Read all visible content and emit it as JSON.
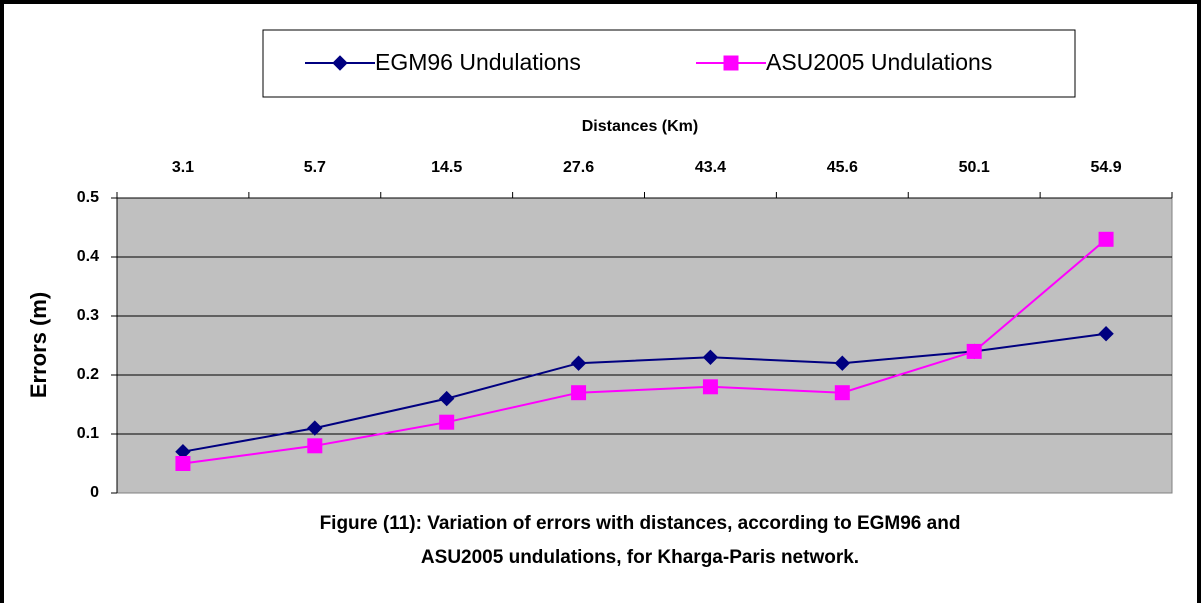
{
  "chart_data": {
    "type": "line",
    "x_label": "Distances (Km)",
    "y_label": "Errors (m)",
    "categories": [
      "3.1",
      "5.7",
      "14.5",
      "27.6",
      "43.4",
      "45.6",
      "50.1",
      "54.9"
    ],
    "series": [
      {
        "name": "EGM96 Undulations",
        "color": "#000080",
        "marker": "diamond",
        "values": [
          0.07,
          0.11,
          0.16,
          0.22,
          0.23,
          0.22,
          0.24,
          0.27
        ]
      },
      {
        "name": "ASU2005 Undulations",
        "color": "#ff00ff",
        "marker": "square",
        "values": [
          0.05,
          0.08,
          0.12,
          0.17,
          0.18,
          0.17,
          0.24,
          0.43
        ]
      }
    ],
    "ylim": [
      0,
      0.5
    ],
    "yticks": [
      0,
      0.1,
      0.2,
      0.3,
      0.4,
      0.5
    ],
    "grid": true,
    "legend": "top",
    "caption": [
      "Figure (11): Variation of errors with distances, according to EGM96 and",
      "ASU2005 undulations, for Kharga-Paris network."
    ]
  }
}
